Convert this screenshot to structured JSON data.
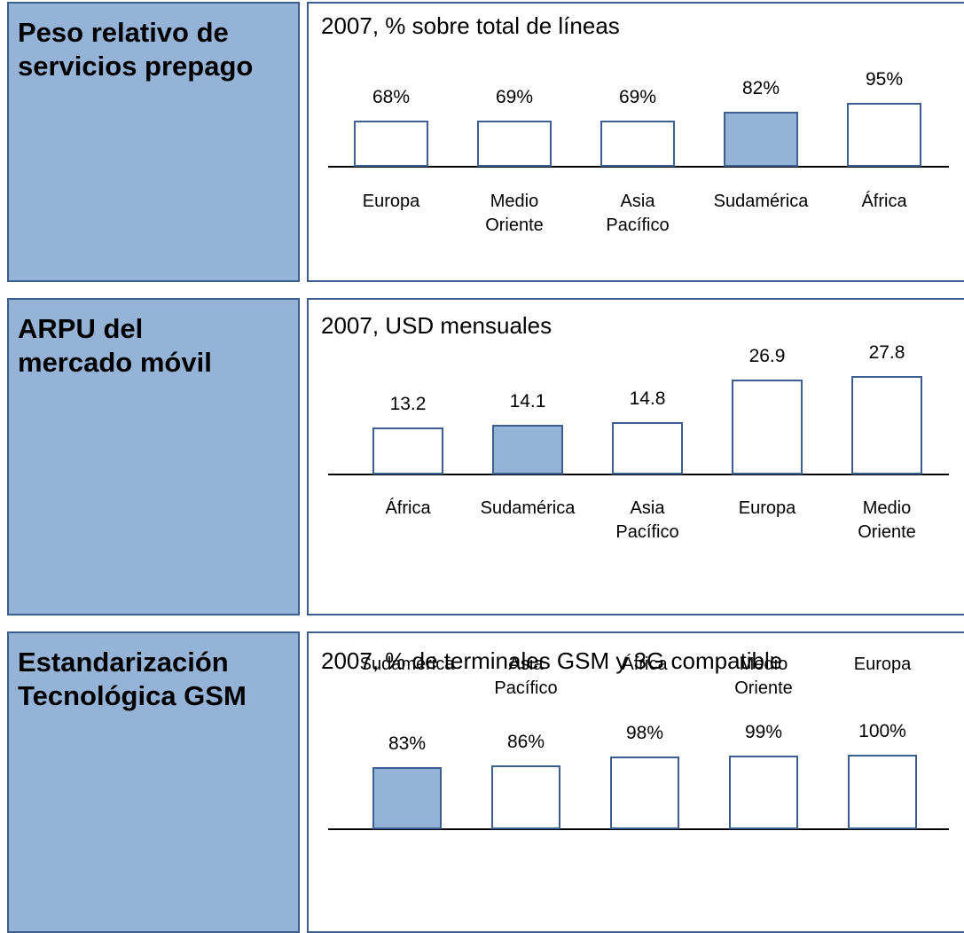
{
  "chart_data": [
    {
      "type": "bar",
      "title": "Peso relativo de servicios prepago",
      "subtitle": "2007, % sobre total de líneas",
      "categories": [
        "Europa",
        "Medio Oriente",
        "Asia Pacífico",
        "Sudamérica",
        "África"
      ],
      "values": [
        68,
        69,
        69,
        82,
        95
      ],
      "value_labels": [
        "68%",
        "69%",
        "69%",
        "82%",
        "95%"
      ],
      "colors": [
        "#ffffff",
        "#ffffff",
        "#ffffff",
        "#95b3d7",
        "#ffffff"
      ]
    },
    {
      "type": "bar",
      "title": "ARPU del mercado móvil",
      "subtitle": "2007, USD mensuales",
      "categories": [
        "África",
        "Sudamérica",
        "Asia Pacífico",
        "Europa",
        "Medio Oriente"
      ],
      "values": [
        13.2,
        14.1,
        14.8,
        26.9,
        27.8
      ],
      "colors": [
        "#ffffff",
        "#95b3d7",
        "#ffffff",
        "#ffffff",
        "#ffffff"
      ]
    },
    {
      "type": "bar",
      "title": "Estandarización Tecnológica GSM",
      "subtitle": "2007, % de terminales GSM y 3G compatible",
      "categories": [
        "Sudamérica",
        "Asia Pacífico",
        "África",
        "Medio Oriente",
        "Europa"
      ],
      "values": [
        83,
        86,
        98,
        99,
        100
      ],
      "value_labels": [
        "83%",
        "86%",
        "98%",
        "99%",
        "100%"
      ],
      "colors": [
        "#95b3d7",
        "#ffffff",
        "#ffffff",
        "#ffffff",
        "#ffffff"
      ]
    }
  ]
}
